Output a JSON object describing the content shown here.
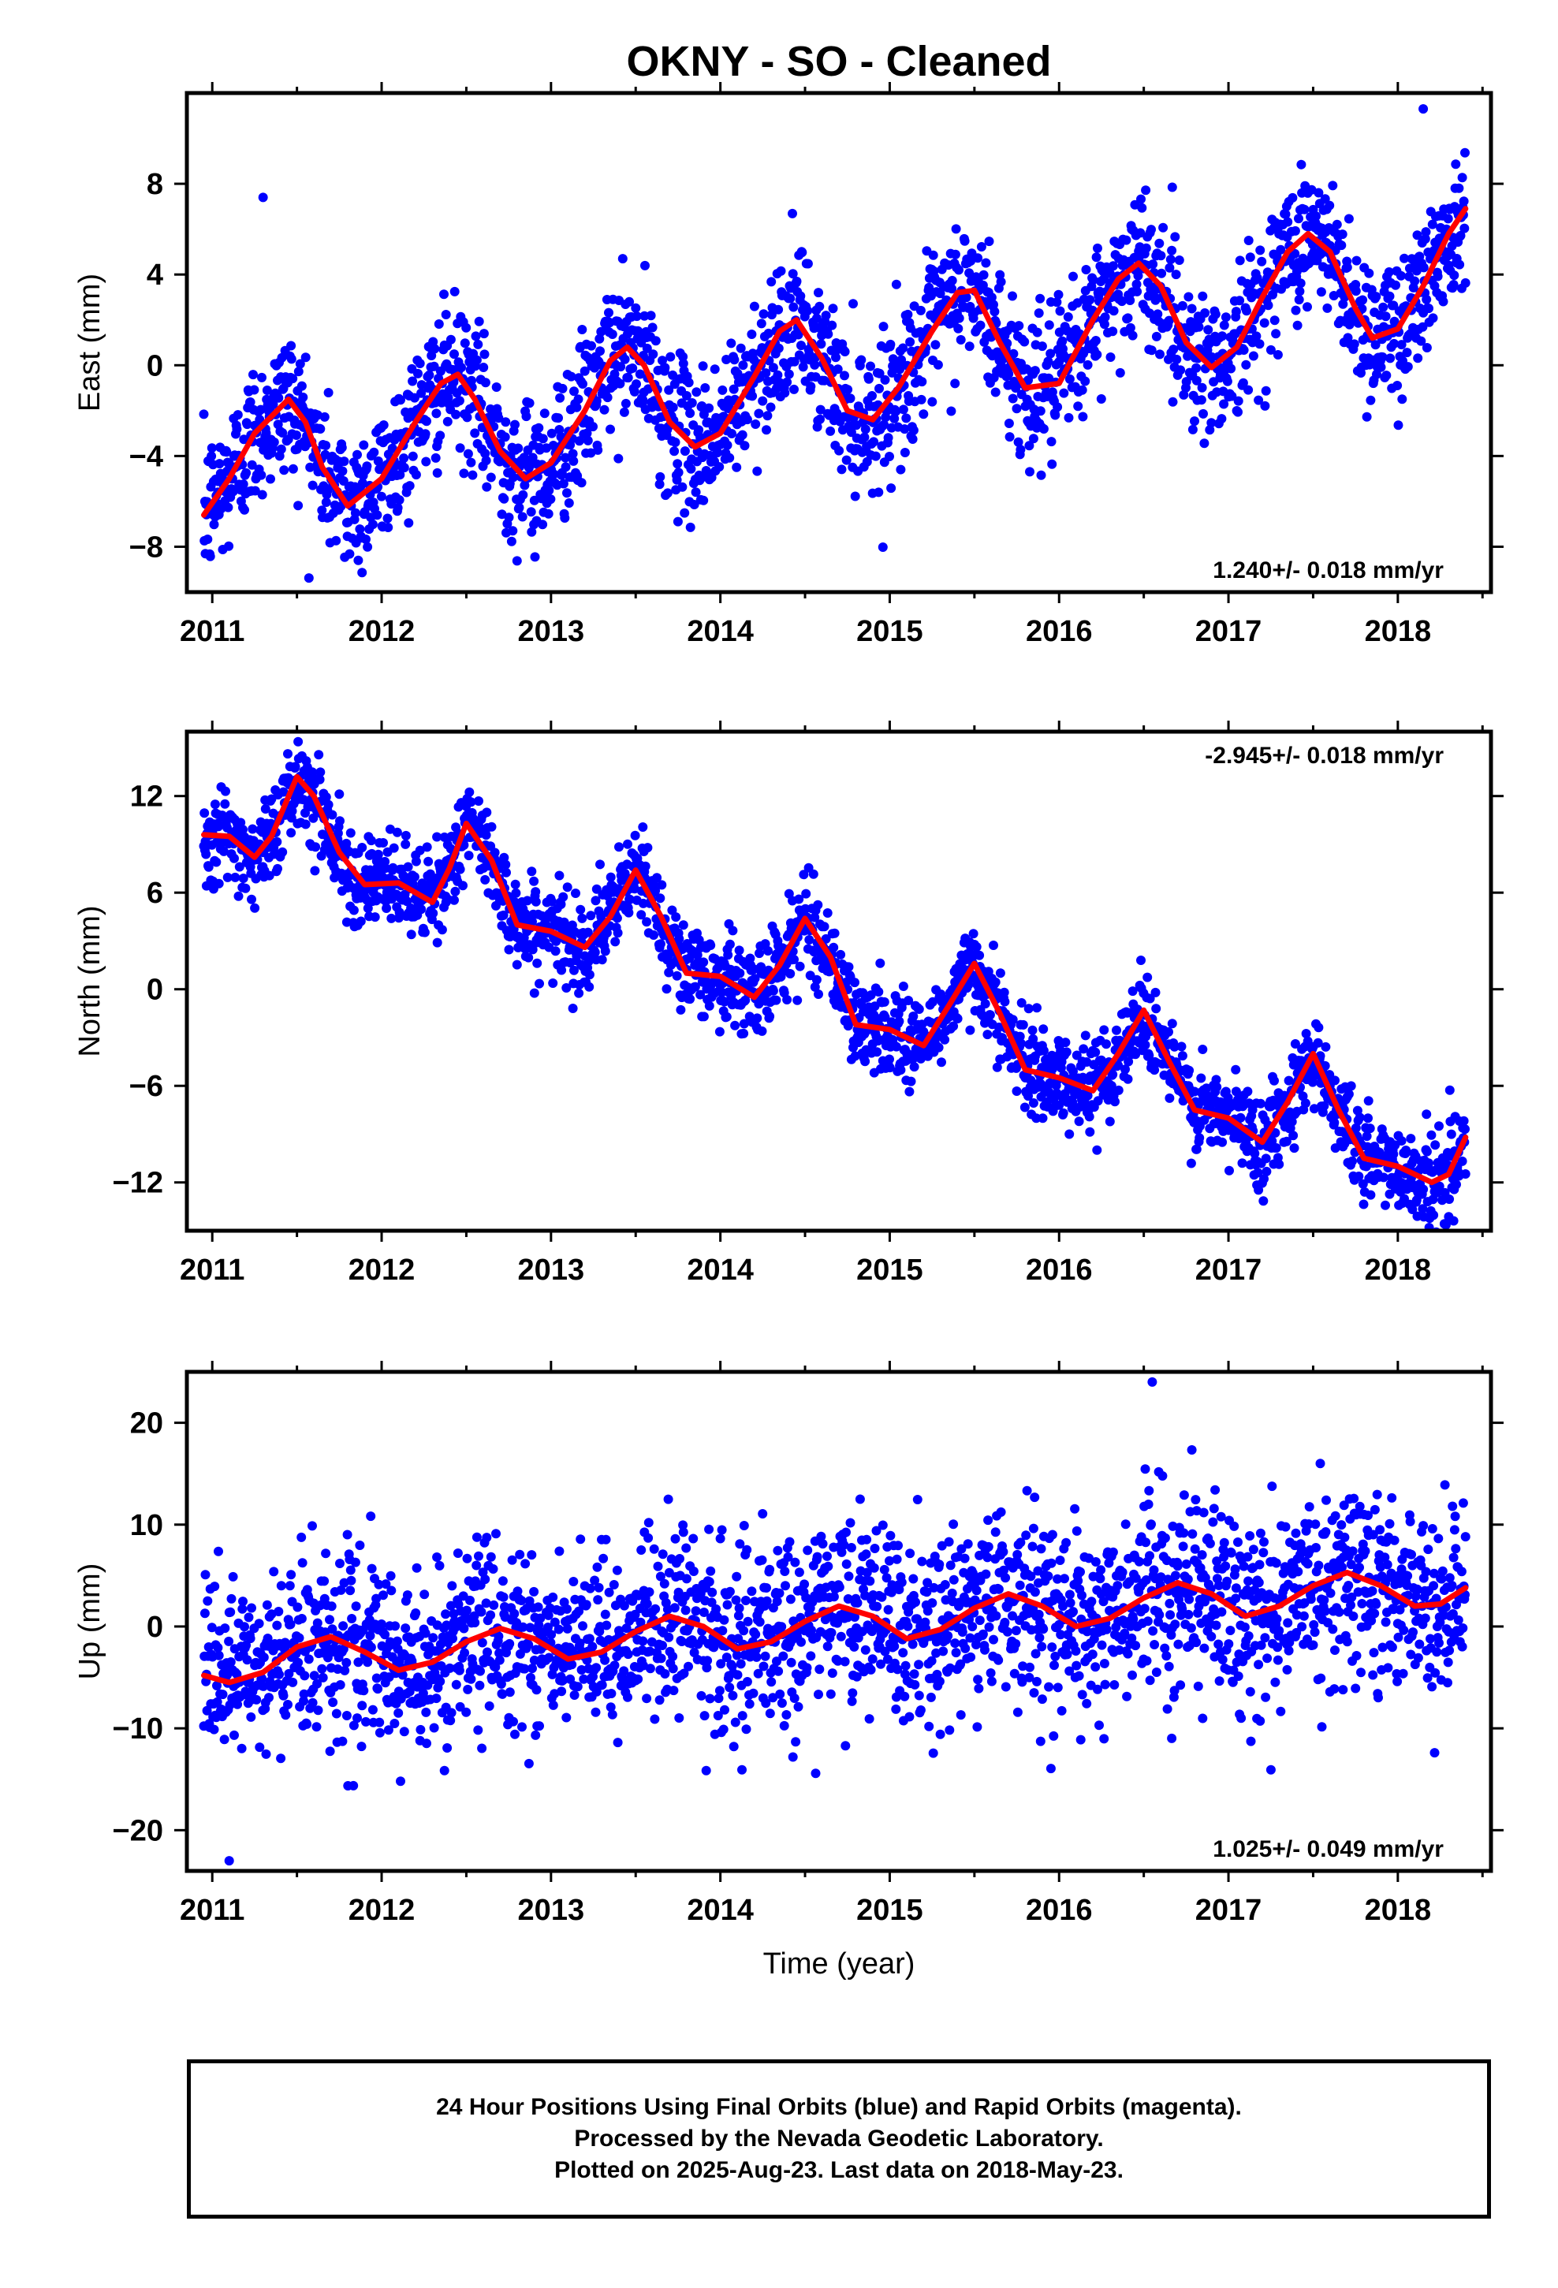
{
  "title": "OKNY  - SO - Cleaned",
  "colors": {
    "data": "#0000ff",
    "model": "#ff0000",
    "frame": "#000000"
  },
  "chart_data": [
    {
      "type": "scatter",
      "name": "east",
      "ylabel": "East (mm)",
      "xlabel": "",
      "xlim": [
        2010.85,
        2018.55
      ],
      "ylim": [
        -10,
        12
      ],
      "xticks": [
        2011,
        2012,
        2013,
        2014,
        2015,
        2016,
        2017,
        2018
      ],
      "yticks": [
        -8,
        -4,
        0,
        4,
        8
      ],
      "ytick_labels": [
        "−8",
        "−4",
        "0",
        "4",
        "8"
      ],
      "rate_label": "1.240+/- 0.018 mm/yr",
      "rate_position": "bottom-right",
      "model": {
        "x": [
          2010.95,
          2011.1,
          2011.25,
          2011.45,
          2011.55,
          2011.65,
          2011.8,
          2012.0,
          2012.2,
          2012.35,
          2012.45,
          2012.55,
          2012.7,
          2012.85,
          2013.0,
          2013.2,
          2013.35,
          2013.45,
          2013.55,
          2013.7,
          2013.85,
          2014.0,
          2014.2,
          2014.35,
          2014.45,
          2014.6,
          2014.75,
          2014.9,
          2015.05,
          2015.25,
          2015.4,
          2015.5,
          2015.65,
          2015.8,
          2016.0,
          2016.2,
          2016.35,
          2016.47,
          2016.6,
          2016.75,
          2016.9,
          2017.05,
          2017.2,
          2017.35,
          2017.47,
          2017.6,
          2017.75,
          2017.85,
          2018.0,
          2018.15,
          2018.3,
          2018.4
        ],
        "y": [
          -6.6,
          -5.0,
          -3.0,
          -1.5,
          -2.5,
          -4.5,
          -6.2,
          -5.0,
          -2.5,
          -0.8,
          -0.4,
          -1.5,
          -3.8,
          -5.0,
          -4.3,
          -2.0,
          0.2,
          0.8,
          0.0,
          -2.5,
          -3.6,
          -3.0,
          -0.5,
          1.5,
          2.0,
          0.3,
          -2.0,
          -2.4,
          -1.0,
          1.5,
          3.2,
          3.3,
          1.0,
          -1.0,
          -0.8,
          2.0,
          3.8,
          4.5,
          3.5,
          1.0,
          -0.1,
          0.8,
          3.0,
          5.0,
          5.8,
          5.0,
          2.5,
          1.2,
          1.6,
          3.5,
          5.8,
          6.9
        ]
      },
      "annotations": [
        {
          "x": 2011.3,
          "y": 7.4
        },
        {
          "x": 2018.15,
          "y": 11.3
        }
      ]
    },
    {
      "type": "scatter",
      "name": "north",
      "ylabel": "North (mm)",
      "xlabel": "",
      "xlim": [
        2010.85,
        2018.55
      ],
      "ylim": [
        -15,
        16
      ],
      "xticks": [
        2011,
        2012,
        2013,
        2014,
        2015,
        2016,
        2017,
        2018
      ],
      "yticks": [
        -12,
        -6,
        0,
        6,
        12
      ],
      "ytick_labels": [
        "−12",
        "−6",
        "0",
        "6",
        "12"
      ],
      "rate_label": "-2.945+/- 0.018 mm/yr",
      "rate_position": "top-right",
      "model": {
        "x": [
          2010.95,
          2011.1,
          2011.25,
          2011.35,
          2011.5,
          2011.6,
          2011.75,
          2011.9,
          2012.1,
          2012.3,
          2012.4,
          2012.5,
          2012.65,
          2012.8,
          2013.0,
          2013.2,
          2013.35,
          2013.5,
          2013.65,
          2013.8,
          2014.0,
          2014.2,
          2014.35,
          2014.5,
          2014.65,
          2014.8,
          2015.0,
          2015.2,
          2015.35,
          2015.5,
          2015.65,
          2015.8,
          2016.0,
          2016.2,
          2016.35,
          2016.5,
          2016.65,
          2016.8,
          2017.0,
          2017.2,
          2017.35,
          2017.5,
          2017.65,
          2017.8,
          2018.0,
          2018.2,
          2018.3,
          2018.4
        ],
        "y": [
          9.6,
          9.5,
          8.2,
          9.5,
          13.2,
          12.0,
          8.5,
          6.5,
          6.6,
          5.4,
          7.5,
          10.3,
          8.0,
          4.0,
          3.6,
          2.6,
          4.5,
          7.4,
          4.5,
          1.0,
          0.8,
          -0.5,
          1.5,
          4.4,
          2.0,
          -2.2,
          -2.5,
          -3.5,
          -1.0,
          1.6,
          -1.5,
          -5.0,
          -5.5,
          -6.3,
          -4.0,
          -1.3,
          -4.5,
          -7.5,
          -8.0,
          -9.5,
          -7.0,
          -4.0,
          -7.5,
          -10.5,
          -11.0,
          -12.0,
          -11.5,
          -9.2
        ]
      },
      "annotations": []
    },
    {
      "type": "scatter",
      "name": "up",
      "ylabel": "Up (mm)",
      "xlabel": "Time (year)",
      "xlim": [
        2010.85,
        2018.55
      ],
      "ylim": [
        -24,
        25
      ],
      "xticks": [
        2011,
        2012,
        2013,
        2014,
        2015,
        2016,
        2017,
        2018
      ],
      "yticks": [
        -20,
        -10,
        0,
        10,
        20
      ],
      "ytick_labels": [
        "−20",
        "−10",
        "0",
        "10",
        "20"
      ],
      "rate_label": "1.025+/- 0.049 mm/yr",
      "rate_position": "bottom-right",
      "model": {
        "x": [
          2010.95,
          2011.1,
          2011.3,
          2011.5,
          2011.7,
          2011.9,
          2012.1,
          2012.3,
          2012.5,
          2012.7,
          2012.9,
          2013.1,
          2013.3,
          2013.5,
          2013.7,
          2013.9,
          2014.1,
          2014.3,
          2014.5,
          2014.7,
          2014.9,
          2015.1,
          2015.3,
          2015.5,
          2015.7,
          2015.9,
          2016.1,
          2016.3,
          2016.5,
          2016.7,
          2016.9,
          2017.1,
          2017.3,
          2017.5,
          2017.7,
          2017.9,
          2018.1,
          2018.25,
          2018.4
        ],
        "y": [
          -4.8,
          -5.5,
          -4.5,
          -2.0,
          -1.0,
          -2.5,
          -4.3,
          -3.5,
          -1.5,
          -0.2,
          -1.2,
          -3.2,
          -2.5,
          -0.5,
          1.0,
          0.0,
          -2.2,
          -1.5,
          0.5,
          2.0,
          1.0,
          -1.2,
          -0.3,
          1.8,
          3.2,
          2.0,
          0.0,
          0.8,
          2.8,
          4.3,
          3.2,
          1.0,
          2.0,
          4.0,
          5.3,
          4.0,
          2.0,
          2.2,
          3.8
        ]
      },
      "annotations": [
        {
          "x": 2016.55,
          "y": 24.0
        },
        {
          "x": 2011.1,
          "y": -23.0
        }
      ]
    }
  ],
  "footer": {
    "line1": "24 Hour Positions Using Final Orbits (blue) and Rapid Orbits (magenta).",
    "line2": "Processed by the Nevada Geodetic Laboratory.",
    "line3": "Plotted on 2025-Aug-23. Last data on 2018-May-23."
  }
}
